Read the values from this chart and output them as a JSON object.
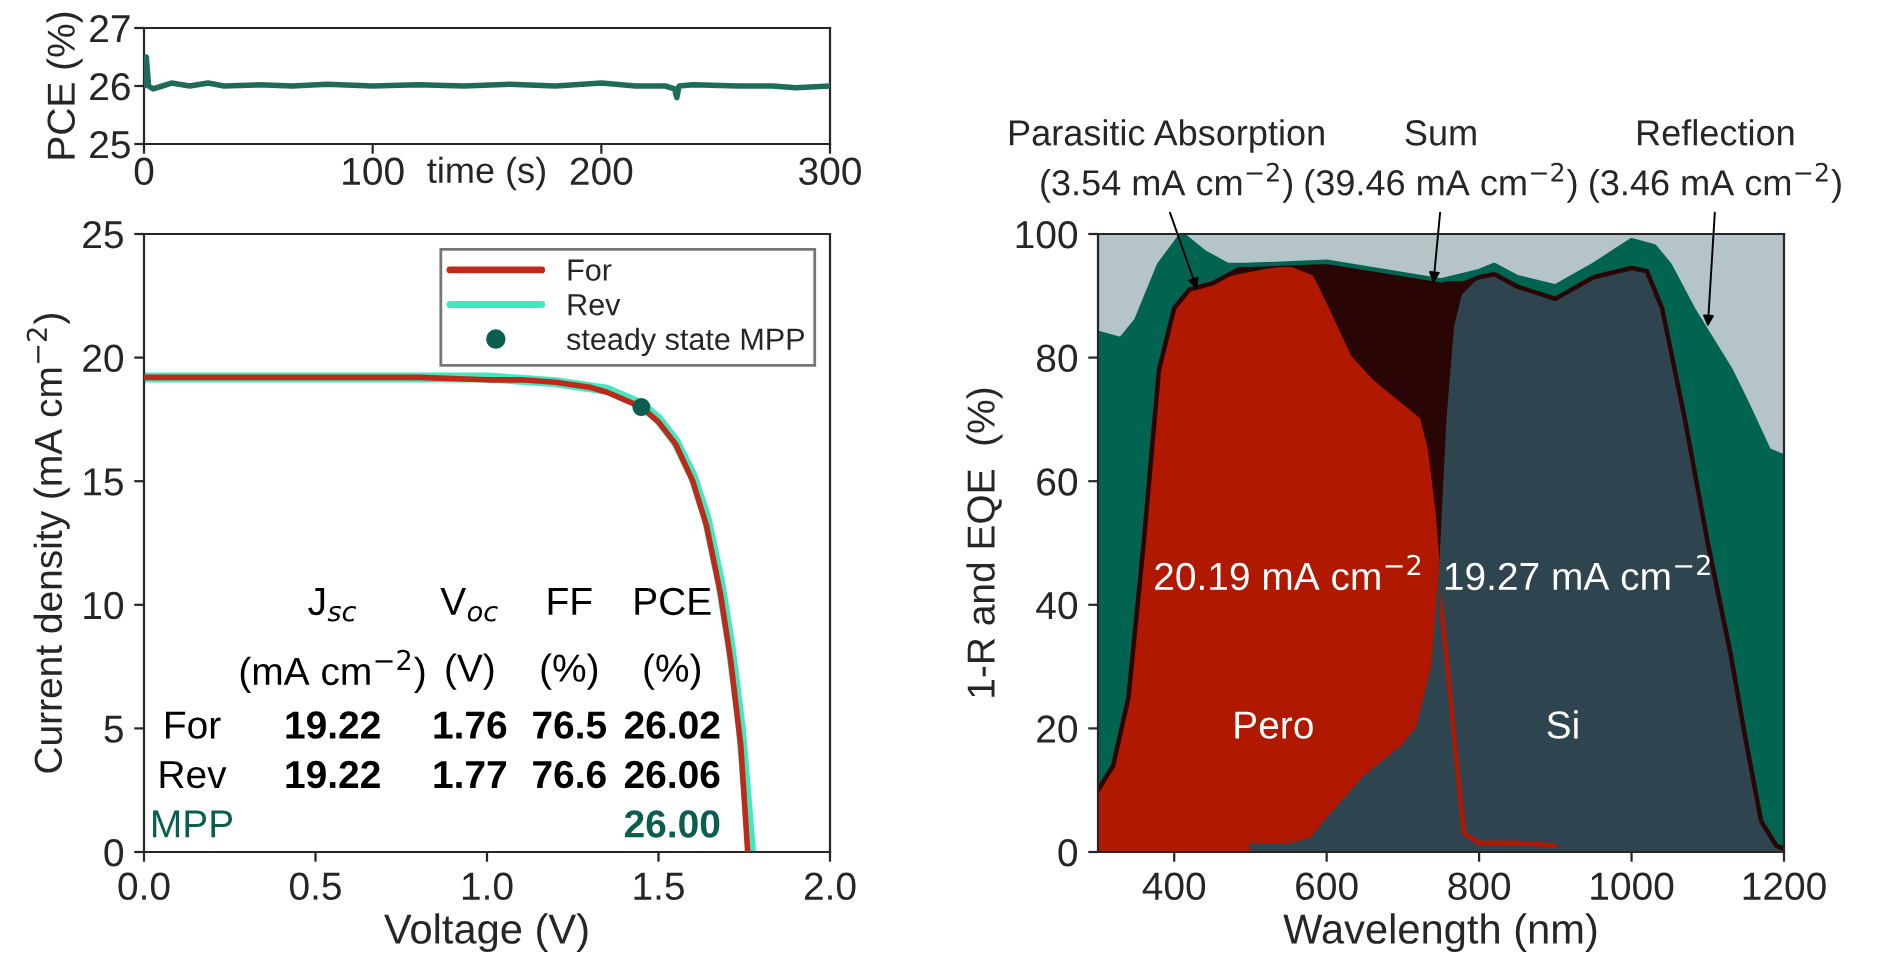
{
  "chart_data": [
    {
      "type": "line",
      "xlabel": "time (s)",
      "ylabel": "PCE (%)",
      "xlim": [
        0,
        300
      ],
      "ylim": [
        25,
        27
      ],
      "xticks": [
        0,
        100,
        200,
        300
      ],
      "yticks": [
        25,
        26,
        27
      ],
      "series": [
        {
          "color": "#1f6b5a",
          "x": [
            0,
            1,
            2,
            4,
            8,
            12,
            20,
            28,
            35,
            50,
            65,
            80,
            100,
            120,
            140,
            160,
            180,
            200,
            215,
            228,
            232,
            233,
            234,
            240,
            260,
            275,
            285,
            300
          ],
          "values": [
            26.0,
            26.5,
            26.0,
            25.95,
            26.0,
            26.05,
            26.0,
            26.05,
            26.0,
            26.02,
            26.0,
            26.03,
            26.0,
            26.02,
            26.0,
            26.03,
            26.0,
            26.05,
            26.0,
            26.0,
            25.95,
            25.8,
            26.0,
            26.02,
            26.0,
            26.0,
            25.97,
            26.0
          ]
        }
      ]
    },
    {
      "type": "line",
      "xlabel": "Voltage (V)",
      "ylabel": "Current density (mA cm$^{−2}$)",
      "xlim": [
        0,
        2
      ],
      "ylim": [
        0,
        25
      ],
      "xticks": [
        {
          "value": 0,
          "label": "0.0"
        },
        {
          "value": 0.5,
          "label": "0.5"
        },
        {
          "value": 1,
          "label": "1.0"
        },
        {
          "value": 1.5,
          "label": "1.5"
        },
        {
          "value": 2,
          "label": "2.0"
        }
      ],
      "yticks": [
        0,
        5,
        10,
        15,
        20,
        25
      ],
      "legend": "top right",
      "series": [
        {
          "name": "For",
          "color": "#c0281a",
          "x": [
            0,
            0.4,
            0.8,
            1.0,
            1.1,
            1.2,
            1.3,
            1.35,
            1.4,
            1.45,
            1.5,
            1.55,
            1.6,
            1.64,
            1.68,
            1.71,
            1.74,
            1.76
          ],
          "values": [
            19.2,
            19.2,
            19.2,
            19.1,
            19.1,
            19.0,
            18.8,
            18.6,
            18.3,
            18.0,
            17.4,
            16.5,
            15.0,
            13.2,
            10.5,
            7.8,
            4.3,
            0
          ]
        },
        {
          "name": "Rev",
          "color": "#40e8c0",
          "x": [
            0,
            0.4,
            0.8,
            1.0,
            1.1,
            1.2,
            1.3,
            1.35,
            1.4,
            1.45,
            1.5,
            1.55,
            1.6,
            1.64,
            1.68,
            1.71,
            1.74,
            1.77
          ],
          "values": [
            19.2,
            19.2,
            19.2,
            19.2,
            19.1,
            19.0,
            18.8,
            18.7,
            18.4,
            18.1,
            17.5,
            16.6,
            15.2,
            13.5,
            10.9,
            8.3,
            5.0,
            0
          ]
        },
        {
          "name": "steady state MPP",
          "type": "scatter",
          "color": "#0b5e4f",
          "x": [
            1.45
          ],
          "values": [
            18.0
          ]
        }
      ],
      "annotations": [
        "J$_{sc}$",
        "V$_{oc}$",
        "FF",
        "PCE",
        "(mA cm$^{−2}$)",
        "(V)",
        "(%)",
        "(%)",
        "For",
        "19.22",
        "1.76",
        "76.5",
        "26.02",
        "Rev",
        "19.22",
        "1.77",
        "76.6",
        "26.06",
        "MPP",
        "26.00"
      ]
    },
    {
      "type": "area",
      "xlabel": "Wavelength (nm)",
      "ylabel": "1-R and EQE  (%)",
      "xlim": [
        300,
        1200
      ],
      "ylim": [
        0,
        100
      ],
      "xticks": [
        400,
        600,
        800,
        1000,
        1200
      ],
      "yticks": [
        0,
        20,
        40,
        60,
        80,
        100
      ],
      "series": [
        {
          "type": "area",
          "color": "#006450",
          "x": [
            300,
            330,
            350,
            380,
            410,
            440,
            470,
            500,
            600,
            700,
            750,
            800,
            820,
            850,
            900,
            950,
            1000,
            1030,
            1050,
            1080,
            1100,
            1130,
            1150,
            1180,
            1200
          ],
          "values": [
            84,
            83,
            86,
            95,
            100,
            97,
            95,
            95,
            95.5,
            93.5,
            92.5,
            94,
            95,
            93,
            91.5,
            95,
            99,
            98,
            95,
            88,
            84,
            78,
            73,
            65,
            64
          ]
        },
        {
          "type": "area",
          "color": "#2a0505",
          "x": [
            300,
            320,
            340,
            360,
            380,
            400,
            420,
            450,
            480,
            500,
            600,
            700,
            750,
            780,
            800,
            820,
            850,
            900,
            950,
            1000,
            1020,
            1040,
            1070,
            1100,
            1130,
            1150,
            1170,
            1190,
            1200
          ],
          "values": [
            10,
            14,
            25,
            50,
            78,
            88,
            91,
            92,
            94,
            95,
            95,
            93,
            92,
            92,
            93,
            93.5,
            91.5,
            89.5,
            93,
            94.5,
            94,
            88,
            70,
            50,
            32,
            18,
            5,
            1,
            0.5
          ]
        },
        {
          "type": "area",
          "name": "Pero",
          "color": "#b01800",
          "x": [
            300,
            320,
            340,
            360,
            380,
            400,
            420,
            450,
            480,
            520,
            550,
            580,
            600,
            630,
            660,
            700,
            720,
            730,
            740,
            750,
            760,
            770,
            780,
            800,
            850,
            900
          ],
          "values": [
            10,
            14,
            25,
            50,
            78,
            88,
            91,
            92,
            93,
            94,
            94.5,
            93,
            88,
            80,
            76,
            72,
            70,
            65,
            55,
            40,
            28,
            15,
            3,
            1.5,
            1.5,
            1
          ]
        },
        {
          "type": "area",
          "name": "Si",
          "color": "#2e4550",
          "x": [
            500,
            550,
            580,
            600,
            650,
            700,
            720,
            740,
            750,
            760,
            770,
            780,
            800,
            820,
            850,
            900,
            950,
            1000,
            1020,
            1040,
            1070,
            1100,
            1130,
            1150,
            1170,
            1190,
            1200
          ],
          "values": [
            1,
            1,
            2,
            5,
            12,
            17,
            20,
            30,
            45,
            70,
            85,
            90,
            92.5,
            93,
            91,
            89.5,
            93,
            94.5,
            94,
            88,
            70,
            50,
            32,
            18,
            5,
            1,
            0.5
          ]
        }
      ],
      "annotations": [
        {
          "text": "Parasitic Absorption\n(3.54 mA cm$^{−2}$)",
          "x": 430,
          "y": 91
        },
        {
          "text": "Sum\n(39.46 mA cm$^{−2}$)",
          "x": 740,
          "y": 92
        },
        {
          "text": "Reflection\n(3.46 mA cm$^{−2}$)",
          "x": 1100,
          "y": 85
        },
        "20.19 mA cm$^{−2}$",
        "19.27 mA cm$^{−2}$"
      ]
    }
  ]
}
